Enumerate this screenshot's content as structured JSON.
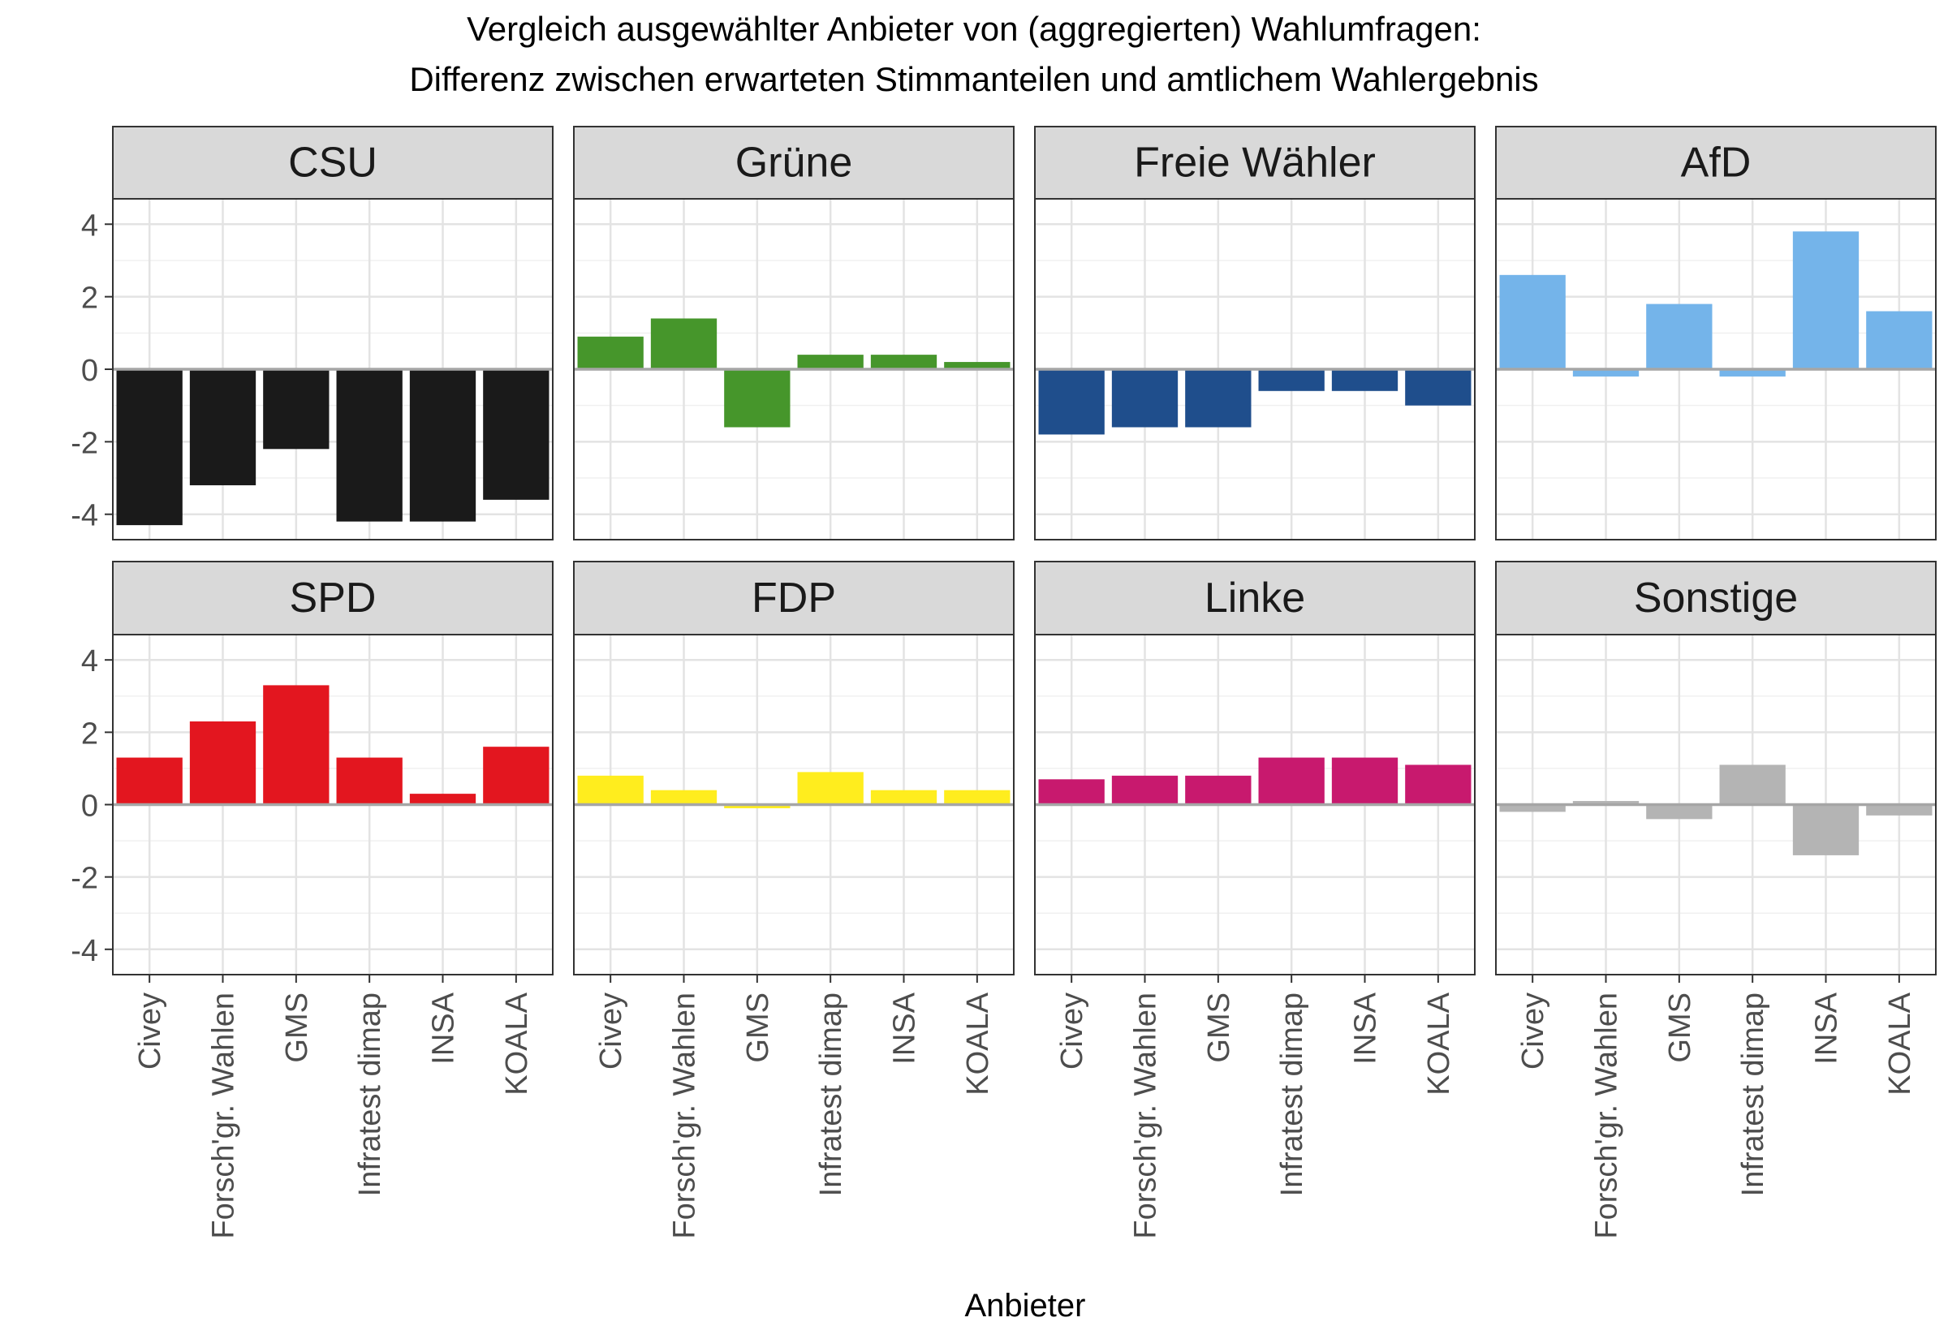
{
  "chart_data": {
    "type": "bar",
    "title": [
      "Vergleich ausgewählter Anbieter von (aggregierten) Wahlumfragen:",
      "Differenz zwischen erwarteten Stimmanteilen und amtlichem Wahlergebnis"
    ],
    "xlabel": "Anbieter",
    "ylabel": "",
    "ylim": [
      -4.7,
      4.7
    ],
    "yticks": [
      "-4",
      "-2",
      "0",
      "2",
      "4"
    ],
    "yticks_values": [
      -4,
      -2,
      0,
      2,
      4
    ],
    "categories": [
      "Civey",
      "Forsch'gr. Wahlen",
      "GMS",
      "Infratest dimap",
      "INSA",
      "KOALA"
    ],
    "facets": [
      {
        "name": "CSU",
        "color": "#1a1a1a",
        "values": [
          -4.3,
          -3.2,
          -2.2,
          -4.2,
          -4.2,
          -3.6
        ]
      },
      {
        "name": "Grüne",
        "color": "#46962b",
        "values": [
          0.9,
          1.4,
          -1.6,
          0.4,
          0.4,
          0.2
        ]
      },
      {
        "name": "Freie Wähler",
        "color": "#1f4e8c",
        "values": [
          -1.8,
          -1.6,
          -1.6,
          -0.6,
          -0.6,
          -1.0
        ]
      },
      {
        "name": "AfD",
        "color": "#74b4ea",
        "values": [
          2.6,
          -0.2,
          1.8,
          -0.2,
          3.8,
          1.6
        ]
      },
      {
        "name": "SPD",
        "color": "#e3161f",
        "values": [
          1.3,
          2.3,
          3.3,
          1.3,
          0.3,
          1.6
        ]
      },
      {
        "name": "FDP",
        "color": "#ffed1e",
        "values": [
          0.8,
          0.4,
          -0.1,
          0.9,
          0.4,
          0.4
        ]
      },
      {
        "name": "Linke",
        "color": "#c8196e",
        "values": [
          0.7,
          0.8,
          0.8,
          1.3,
          1.3,
          1.1
        ]
      },
      {
        "name": "Sonstige",
        "color": "#b4b4b4",
        "values": [
          -0.2,
          0.1,
          -0.4,
          1.1,
          -1.4,
          -0.3
        ]
      }
    ],
    "grid": true,
    "zero_line_color": "#a6a6a6"
  }
}
